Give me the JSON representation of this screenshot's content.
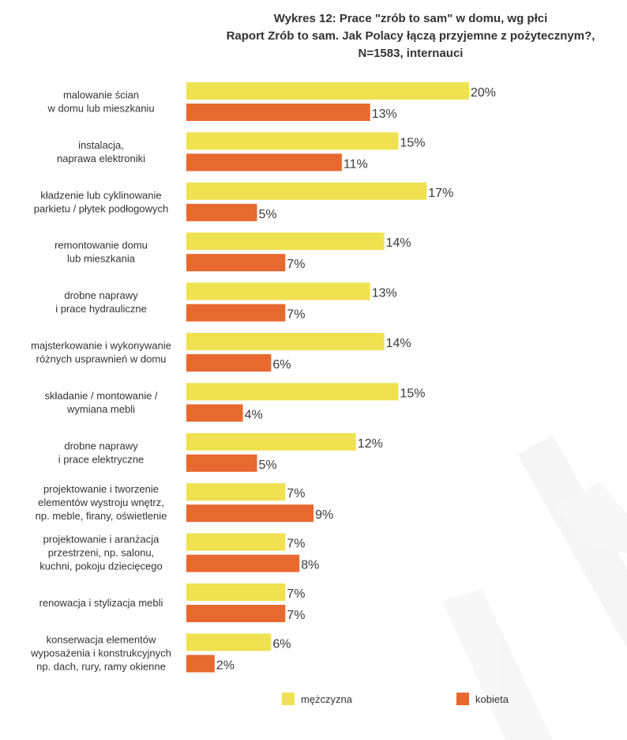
{
  "chart_data": {
    "type": "bar",
    "orientation": "horizontal",
    "title_lines": [
      "Wykres 12: Prace \"zrób to sam\" w domu, wg płci",
      "Raport Zrób to sam. Jak Polacy łączą przyjemne z pożytecznym?,",
      "N=1583, internauci"
    ],
    "value_suffix": "%",
    "categories": [
      [
        "malowanie ścian",
        "w domu lub mieszkaniu"
      ],
      [
        "instalacja,",
        "naprawa elektroniki"
      ],
      [
        "kładzenie lub cyklinowanie",
        "parkietu / płytek podłogowych"
      ],
      [
        "remontowanie domu",
        "lub mieszkania"
      ],
      [
        "drobne naprawy",
        "i prace hydrauliczne"
      ],
      [
        "majsterkowanie i wykonywanie",
        "różnych usprawnień w domu"
      ],
      [
        "składanie / montowanie /",
        "wymiana mebli"
      ],
      [
        "drobne naprawy",
        "i prace elektryczne"
      ],
      [
        "projektowanie i tworzenie",
        "elementów wystroju wnętrz,",
        "np. meble, firany, oświetlenie"
      ],
      [
        "projektowanie i aranżacja",
        "przestrzeni, np. salonu,",
        "kuchni, pokoju dziecięcego"
      ],
      [
        "renowacja i stylizacja mebli"
      ],
      [
        "konserwacja elementów",
        "wyposażenia i konstrukcyjnych",
        "np. dach, rury, ramy okienne"
      ]
    ],
    "series": [
      {
        "name": "mężczyzna",
        "color": "#f0e150",
        "values": [
          20,
          15,
          17,
          14,
          13,
          14,
          15,
          12,
          7,
          7,
          7,
          6
        ]
      },
      {
        "name": "kobieta",
        "color": "#e8692f",
        "values": [
          13,
          11,
          5,
          7,
          7,
          6,
          4,
          5,
          9,
          8,
          7,
          2
        ]
      }
    ],
    "legend_position": "bottom",
    "grid": false
  }
}
